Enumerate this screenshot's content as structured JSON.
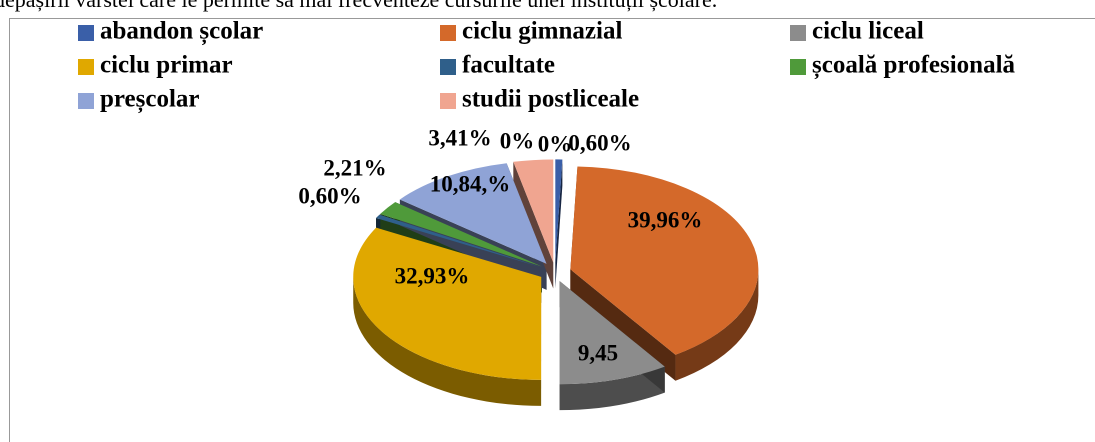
{
  "header": {
    "text": "depășirii vârstei care le permite să mai frecventeze cursurile unei instituții școlare."
  },
  "chart_data": {
    "type": "pie",
    "categories": [
      "abandon școlar",
      "ciclu gimnazial",
      "ciclu liceal",
      "ciclu primar",
      "facultate",
      "școală profesională",
      "preșcolar",
      "studii postliceale"
    ],
    "values": [
      0.6,
      39.96,
      9.45,
      32.93,
      0.6,
      2.21,
      10.84,
      3.41
    ],
    "value_labels": [
      "0,60%",
      "39,96%",
      "9,45",
      "32,93%",
      "0,60%",
      "2,21%",
      "10,84,%",
      "3,41%"
    ],
    "colors": [
      "#3a5fa8",
      "#d4692a",
      "#8c8c8c",
      "#e0a800",
      "#2f5f8a",
      "#4f9a3a",
      "#8fa3d6",
      "#f0a590"
    ],
    "annotations": [
      "0%",
      "0%"
    ],
    "legend": "top"
  }
}
